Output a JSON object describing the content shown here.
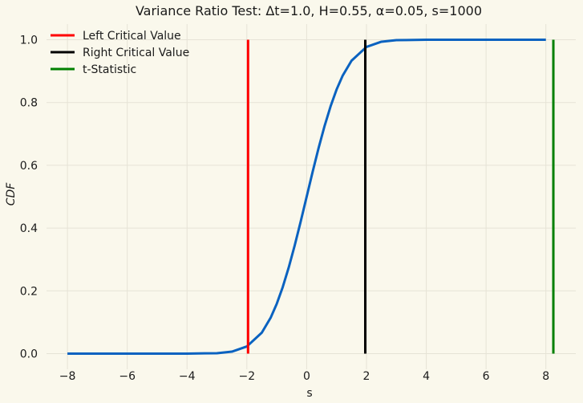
{
  "chart_data": {
    "type": "line",
    "title": "Variance Ratio Test: Δt=1.0, H=0.55, α=0.05, s=1000",
    "xlabel": "s",
    "ylabel": "CDF",
    "xlim": [
      -8.7,
      9.0
    ],
    "ylim": [
      -0.05,
      1.05
    ],
    "xticks": [
      -8,
      -6,
      -4,
      -2,
      0,
      2,
      4,
      6,
      8
    ],
    "xtick_labels": [
      "−8",
      "−6",
      "−4",
      "−2",
      "0",
      "2",
      "4",
      "6",
      "8"
    ],
    "yticks": [
      0.0,
      0.2,
      0.4,
      0.6,
      0.8,
      1.0
    ],
    "ytick_labels": [
      "0.0",
      "0.2",
      "0.4",
      "0.6",
      "0.8",
      "1.0"
    ],
    "grid": true,
    "legend_placement": "top-left",
    "curve": {
      "name": "",
      "color": "#0a62c0",
      "x": [
        -8,
        -6,
        -4,
        -3,
        -2.5,
        -2,
        -1.5,
        -1.2,
        -1,
        -0.8,
        -0.6,
        -0.4,
        -0.2,
        0,
        0.2,
        0.4,
        0.6,
        0.8,
        1,
        1.2,
        1.5,
        2,
        2.5,
        3,
        4,
        6,
        8
      ],
      "y": [
        0.0,
        0.0,
        0.0,
        0.0013,
        0.0062,
        0.0228,
        0.0668,
        0.1151,
        0.1587,
        0.2119,
        0.2743,
        0.3446,
        0.4207,
        0.5,
        0.5793,
        0.6554,
        0.7257,
        0.7881,
        0.8413,
        0.8849,
        0.9332,
        0.9772,
        0.9938,
        0.9987,
        1.0,
        1.0,
        1.0
      ]
    },
    "vertical_lines": [
      {
        "name": "Left Critical Value",
        "x": -1.96,
        "y_range": [
          0,
          1
        ],
        "color": "#ff0000"
      },
      {
        "name": "Right Critical Value",
        "x": 1.96,
        "y_range": [
          0,
          1
        ],
        "color": "#000000"
      },
      {
        "name": "t-Statistic",
        "x": 8.25,
        "y_range": [
          0,
          1
        ],
        "color": "#008000"
      }
    ]
  }
}
